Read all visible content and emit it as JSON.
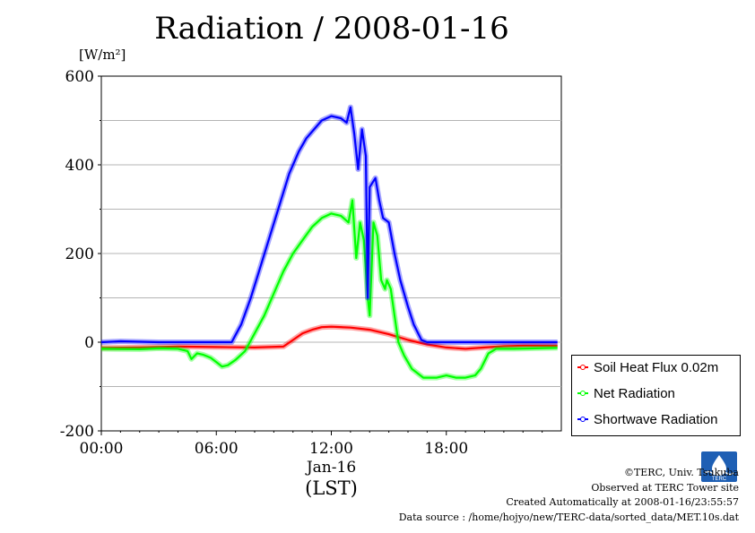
{
  "title": "Radiation / 2008-01-16",
  "unit_label": "[W/m²]",
  "legend": [
    {
      "name": "Soil Heat Flux 0.02m",
      "color": "#ff0000"
    },
    {
      "name": "Net Radiation",
      "color": "#00ff00"
    },
    {
      "name": "Shortwave Radiation",
      "color": "#0000ff"
    }
  ],
  "credits": {
    "line1": "©TERC, Univ. Tsukuba",
    "line2": "Observed at TERC Tower site",
    "line3": "Created Automatically at 2008-01-16/23:55:57",
    "line4": "Data source : /home/hojyo/new/TERC-data/sorted_data/MET.10s.dat"
  },
  "logo_text": "TERC",
  "chart_data": {
    "type": "line",
    "title": "Radiation / 2008-01-16",
    "ylabel": "[W/m²]",
    "xlabel": "(LST)",
    "date_label": "Jan-16",
    "ylim": [
      -200,
      600
    ],
    "xlim": [
      0,
      24
    ],
    "x_unit": "hour",
    "yticks": [
      -200,
      0,
      200,
      400,
      600
    ],
    "xticks": [
      0,
      6,
      12,
      18
    ],
    "xtick_labels": [
      "00:00",
      "06:00",
      "12:00",
      "18:00"
    ],
    "grid": true,
    "legend_position": "bottom-right outside",
    "series": [
      {
        "name": "Soil Heat Flux 0.02m",
        "color": "#ff0000",
        "points": [
          [
            0,
            -13
          ],
          [
            2,
            -12
          ],
          [
            4,
            -10
          ],
          [
            6,
            -11
          ],
          [
            8,
            -12
          ],
          [
            9.5,
            -10
          ],
          [
            10,
            5
          ],
          [
            10.5,
            20
          ],
          [
            11,
            28
          ],
          [
            11.5,
            34
          ],
          [
            12,
            35
          ],
          [
            13,
            33
          ],
          [
            14,
            28
          ],
          [
            15,
            18
          ],
          [
            16,
            5
          ],
          [
            17,
            -5
          ],
          [
            18,
            -12
          ],
          [
            19,
            -15
          ],
          [
            20,
            -12
          ],
          [
            21,
            -9
          ],
          [
            22,
            -8
          ],
          [
            23.8,
            -8
          ]
        ]
      },
      {
        "name": "Net Radiation",
        "color": "#00ff00",
        "points": [
          [
            0,
            -15
          ],
          [
            2,
            -16
          ],
          [
            3,
            -14
          ],
          [
            4,
            -15
          ],
          [
            4.5,
            -20
          ],
          [
            4.7,
            -38
          ],
          [
            5,
            -25
          ],
          [
            5.3,
            -28
          ],
          [
            5.7,
            -35
          ],
          [
            6,
            -45
          ],
          [
            6.3,
            -55
          ],
          [
            6.6,
            -52
          ],
          [
            7,
            -40
          ],
          [
            7.5,
            -20
          ],
          [
            8,
            20
          ],
          [
            8.5,
            60
          ],
          [
            9,
            110
          ],
          [
            9.5,
            160
          ],
          [
            10,
            200
          ],
          [
            10.5,
            230
          ],
          [
            11,
            260
          ],
          [
            11.5,
            280
          ],
          [
            12,
            290
          ],
          [
            12.5,
            285
          ],
          [
            12.9,
            270
          ],
          [
            13.1,
            320
          ],
          [
            13.3,
            190
          ],
          [
            13.5,
            270
          ],
          [
            13.7,
            230
          ],
          [
            13.9,
            100
          ],
          [
            14,
            60
          ],
          [
            14.2,
            270
          ],
          [
            14.4,
            240
          ],
          [
            14.6,
            140
          ],
          [
            14.8,
            120
          ],
          [
            14.9,
            140
          ],
          [
            15.1,
            120
          ],
          [
            15.3,
            60
          ],
          [
            15.5,
            0
          ],
          [
            15.8,
            -30
          ],
          [
            16.2,
            -60
          ],
          [
            16.8,
            -80
          ],
          [
            17.5,
            -80
          ],
          [
            18,
            -75
          ],
          [
            18.5,
            -80
          ],
          [
            19,
            -80
          ],
          [
            19.5,
            -75
          ],
          [
            19.8,
            -60
          ],
          [
            20.2,
            -25
          ],
          [
            20.6,
            -15
          ],
          [
            21.5,
            -15
          ],
          [
            23.8,
            -13
          ]
        ]
      },
      {
        "name": "Shortwave Radiation",
        "color": "#0000ff",
        "points": [
          [
            0,
            0
          ],
          [
            1,
            2
          ],
          [
            3,
            0
          ],
          [
            6,
            0
          ],
          [
            6.8,
            0
          ],
          [
            7.3,
            40
          ],
          [
            7.8,
            100
          ],
          [
            8.3,
            170
          ],
          [
            8.8,
            240
          ],
          [
            9.3,
            310
          ],
          [
            9.8,
            380
          ],
          [
            10.3,
            430
          ],
          [
            10.7,
            460
          ],
          [
            11,
            475
          ],
          [
            11.5,
            500
          ],
          [
            12,
            510
          ],
          [
            12.5,
            505
          ],
          [
            12.8,
            495
          ],
          [
            13,
            530
          ],
          [
            13.2,
            470
          ],
          [
            13.4,
            390
          ],
          [
            13.6,
            480
          ],
          [
            13.8,
            420
          ],
          [
            13.9,
            100
          ],
          [
            14,
            350
          ],
          [
            14.3,
            370
          ],
          [
            14.5,
            320
          ],
          [
            14.7,
            280
          ],
          [
            15,
            270
          ],
          [
            15.3,
            200
          ],
          [
            15.6,
            140
          ],
          [
            16,
            80
          ],
          [
            16.3,
            40
          ],
          [
            16.7,
            5
          ],
          [
            17,
            0
          ],
          [
            18,
            0
          ],
          [
            20,
            0
          ],
          [
            22,
            0
          ],
          [
            23.8,
            0
          ]
        ]
      }
    ]
  }
}
